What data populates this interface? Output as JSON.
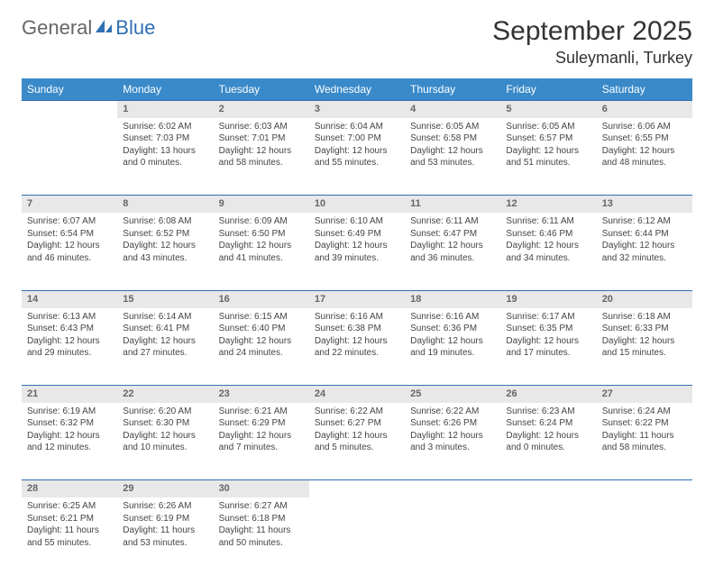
{
  "logo": {
    "general": "General",
    "blue": "Blue"
  },
  "header": {
    "month_title": "September 2025",
    "location": "Suleymanli, Turkey"
  },
  "colors": {
    "header_bg": "#3a8ac9",
    "header_text": "#ffffff",
    "daynum_bg": "#e8e8e8",
    "row_border": "#2f6fb3",
    "body_text": "#444444",
    "logo_blue": "#2f6fb3",
    "logo_gray": "#666666"
  },
  "weekdays": [
    "Sunday",
    "Monday",
    "Tuesday",
    "Wednesday",
    "Thursday",
    "Friday",
    "Saturday"
  ],
  "weeks": [
    {
      "days": [
        {
          "empty": true
        },
        {
          "num": "1",
          "sunrise": "Sunrise: 6:02 AM",
          "sunset": "Sunset: 7:03 PM",
          "day1": "Daylight: 13 hours",
          "day2": "and 0 minutes."
        },
        {
          "num": "2",
          "sunrise": "Sunrise: 6:03 AM",
          "sunset": "Sunset: 7:01 PM",
          "day1": "Daylight: 12 hours",
          "day2": "and 58 minutes."
        },
        {
          "num": "3",
          "sunrise": "Sunrise: 6:04 AM",
          "sunset": "Sunset: 7:00 PM",
          "day1": "Daylight: 12 hours",
          "day2": "and 55 minutes."
        },
        {
          "num": "4",
          "sunrise": "Sunrise: 6:05 AM",
          "sunset": "Sunset: 6:58 PM",
          "day1": "Daylight: 12 hours",
          "day2": "and 53 minutes."
        },
        {
          "num": "5",
          "sunrise": "Sunrise: 6:05 AM",
          "sunset": "Sunset: 6:57 PM",
          "day1": "Daylight: 12 hours",
          "day2": "and 51 minutes."
        },
        {
          "num": "6",
          "sunrise": "Sunrise: 6:06 AM",
          "sunset": "Sunset: 6:55 PM",
          "day1": "Daylight: 12 hours",
          "day2": "and 48 minutes."
        }
      ]
    },
    {
      "days": [
        {
          "num": "7",
          "sunrise": "Sunrise: 6:07 AM",
          "sunset": "Sunset: 6:54 PM",
          "day1": "Daylight: 12 hours",
          "day2": "and 46 minutes."
        },
        {
          "num": "8",
          "sunrise": "Sunrise: 6:08 AM",
          "sunset": "Sunset: 6:52 PM",
          "day1": "Daylight: 12 hours",
          "day2": "and 43 minutes."
        },
        {
          "num": "9",
          "sunrise": "Sunrise: 6:09 AM",
          "sunset": "Sunset: 6:50 PM",
          "day1": "Daylight: 12 hours",
          "day2": "and 41 minutes."
        },
        {
          "num": "10",
          "sunrise": "Sunrise: 6:10 AM",
          "sunset": "Sunset: 6:49 PM",
          "day1": "Daylight: 12 hours",
          "day2": "and 39 minutes."
        },
        {
          "num": "11",
          "sunrise": "Sunrise: 6:11 AM",
          "sunset": "Sunset: 6:47 PM",
          "day1": "Daylight: 12 hours",
          "day2": "and 36 minutes."
        },
        {
          "num": "12",
          "sunrise": "Sunrise: 6:11 AM",
          "sunset": "Sunset: 6:46 PM",
          "day1": "Daylight: 12 hours",
          "day2": "and 34 minutes."
        },
        {
          "num": "13",
          "sunrise": "Sunrise: 6:12 AM",
          "sunset": "Sunset: 6:44 PM",
          "day1": "Daylight: 12 hours",
          "day2": "and 32 minutes."
        }
      ]
    },
    {
      "days": [
        {
          "num": "14",
          "sunrise": "Sunrise: 6:13 AM",
          "sunset": "Sunset: 6:43 PM",
          "day1": "Daylight: 12 hours",
          "day2": "and 29 minutes."
        },
        {
          "num": "15",
          "sunrise": "Sunrise: 6:14 AM",
          "sunset": "Sunset: 6:41 PM",
          "day1": "Daylight: 12 hours",
          "day2": "and 27 minutes."
        },
        {
          "num": "16",
          "sunrise": "Sunrise: 6:15 AM",
          "sunset": "Sunset: 6:40 PM",
          "day1": "Daylight: 12 hours",
          "day2": "and 24 minutes."
        },
        {
          "num": "17",
          "sunrise": "Sunrise: 6:16 AM",
          "sunset": "Sunset: 6:38 PM",
          "day1": "Daylight: 12 hours",
          "day2": "and 22 minutes."
        },
        {
          "num": "18",
          "sunrise": "Sunrise: 6:16 AM",
          "sunset": "Sunset: 6:36 PM",
          "day1": "Daylight: 12 hours",
          "day2": "and 19 minutes."
        },
        {
          "num": "19",
          "sunrise": "Sunrise: 6:17 AM",
          "sunset": "Sunset: 6:35 PM",
          "day1": "Daylight: 12 hours",
          "day2": "and 17 minutes."
        },
        {
          "num": "20",
          "sunrise": "Sunrise: 6:18 AM",
          "sunset": "Sunset: 6:33 PM",
          "day1": "Daylight: 12 hours",
          "day2": "and 15 minutes."
        }
      ]
    },
    {
      "days": [
        {
          "num": "21",
          "sunrise": "Sunrise: 6:19 AM",
          "sunset": "Sunset: 6:32 PM",
          "day1": "Daylight: 12 hours",
          "day2": "and 12 minutes."
        },
        {
          "num": "22",
          "sunrise": "Sunrise: 6:20 AM",
          "sunset": "Sunset: 6:30 PM",
          "day1": "Daylight: 12 hours",
          "day2": "and 10 minutes."
        },
        {
          "num": "23",
          "sunrise": "Sunrise: 6:21 AM",
          "sunset": "Sunset: 6:29 PM",
          "day1": "Daylight: 12 hours",
          "day2": "and 7 minutes."
        },
        {
          "num": "24",
          "sunrise": "Sunrise: 6:22 AM",
          "sunset": "Sunset: 6:27 PM",
          "day1": "Daylight: 12 hours",
          "day2": "and 5 minutes."
        },
        {
          "num": "25",
          "sunrise": "Sunrise: 6:22 AM",
          "sunset": "Sunset: 6:26 PM",
          "day1": "Daylight: 12 hours",
          "day2": "and 3 minutes."
        },
        {
          "num": "26",
          "sunrise": "Sunrise: 6:23 AM",
          "sunset": "Sunset: 6:24 PM",
          "day1": "Daylight: 12 hours",
          "day2": "and 0 minutes."
        },
        {
          "num": "27",
          "sunrise": "Sunrise: 6:24 AM",
          "sunset": "Sunset: 6:22 PM",
          "day1": "Daylight: 11 hours",
          "day2": "and 58 minutes."
        }
      ]
    },
    {
      "days": [
        {
          "num": "28",
          "sunrise": "Sunrise: 6:25 AM",
          "sunset": "Sunset: 6:21 PM",
          "day1": "Daylight: 11 hours",
          "day2": "and 55 minutes."
        },
        {
          "num": "29",
          "sunrise": "Sunrise: 6:26 AM",
          "sunset": "Sunset: 6:19 PM",
          "day1": "Daylight: 11 hours",
          "day2": "and 53 minutes."
        },
        {
          "num": "30",
          "sunrise": "Sunrise: 6:27 AM",
          "sunset": "Sunset: 6:18 PM",
          "day1": "Daylight: 11 hours",
          "day2": "and 50 minutes."
        },
        {
          "empty": true
        },
        {
          "empty": true
        },
        {
          "empty": true
        },
        {
          "empty": true
        }
      ]
    }
  ]
}
